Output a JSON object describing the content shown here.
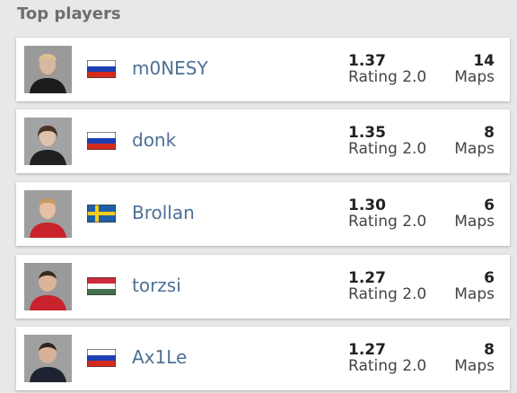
{
  "header": {
    "title": "Top players"
  },
  "players": [
    {
      "name": "m0NESY",
      "rating": "1.37",
      "rating_label": "Rating 2.0",
      "maps": "14",
      "maps_label": "Maps"
    },
    {
      "name": "donk",
      "rating": "1.35",
      "rating_label": "Rating 2.0",
      "maps": "8",
      "maps_label": "Maps"
    },
    {
      "name": "Brollan",
      "rating": "1.30",
      "rating_label": "Rating 2.0",
      "maps": "6",
      "maps_label": "Maps"
    },
    {
      "name": "torzsi",
      "rating": "1.27",
      "rating_label": "Rating 2.0",
      "maps": "6",
      "maps_label": "Maps"
    },
    {
      "name": "Ax1Le",
      "rating": "1.27",
      "rating_label": "Rating 2.0",
      "maps": "8",
      "maps_label": "Maps"
    }
  ]
}
